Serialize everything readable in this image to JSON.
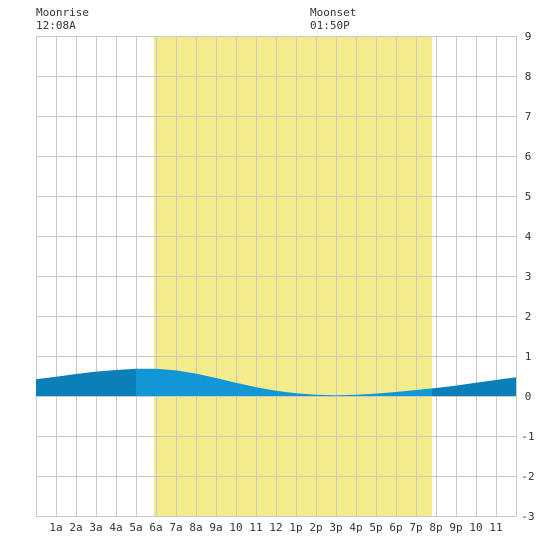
{
  "moon": {
    "rise_label": "Moonrise",
    "rise_time": "12:08A",
    "set_label": "Moonset",
    "set_time": "01:50P"
  },
  "colors": {
    "daylight": "#f4ec8a",
    "night_tide": "#0a7fb8",
    "day_tide": "#1396d6",
    "grid": "#c8c8c8",
    "axis_text": "#333333"
  },
  "chart_data": {
    "type": "area",
    "title": "",
    "xlabel": "",
    "ylabel": "",
    "xlim": [
      0,
      24
    ],
    "ylim": [
      -3,
      9
    ],
    "yticks": [
      "-3",
      "-2",
      "-1",
      "0",
      "1",
      "2",
      "3",
      "4",
      "5",
      "6",
      "7",
      "8",
      "9"
    ],
    "xticks": [
      {
        "x": 1,
        "label": "1a"
      },
      {
        "x": 2,
        "label": "2a"
      },
      {
        "x": 3,
        "label": "3a"
      },
      {
        "x": 4,
        "label": "4a"
      },
      {
        "x": 5,
        "label": "5a"
      },
      {
        "x": 6,
        "label": "6a"
      },
      {
        "x": 7,
        "label": "7a"
      },
      {
        "x": 8,
        "label": "8a"
      },
      {
        "x": 9,
        "label": "9a"
      },
      {
        "x": 10,
        "label": "10"
      },
      {
        "x": 11,
        "label": "11"
      },
      {
        "x": 12,
        "label": "12"
      },
      {
        "x": 13,
        "label": "1p"
      },
      {
        "x": 14,
        "label": "2p"
      },
      {
        "x": 15,
        "label": "3p"
      },
      {
        "x": 16,
        "label": "4p"
      },
      {
        "x": 17,
        "label": "5p"
      },
      {
        "x": 18,
        "label": "6p"
      },
      {
        "x": 19,
        "label": "7p"
      },
      {
        "x": 20,
        "label": "8p"
      },
      {
        "x": 21,
        "label": "9p"
      },
      {
        "x": 22,
        "label": "10"
      },
      {
        "x": 23,
        "label": "11"
      }
    ],
    "daylight": {
      "start": 5.9,
      "end": 19.8
    },
    "moonrise_hour": 0.13,
    "moonset_hour": 13.83,
    "grid": true,
    "series": [
      {
        "x": [
          0,
          1,
          2,
          3,
          4,
          5,
          6,
          7,
          8,
          9,
          10,
          11,
          12,
          13,
          14,
          15,
          16,
          17,
          18,
          19,
          20,
          21,
          22,
          23,
          24
        ],
        "values": [
          0.42,
          0.48,
          0.55,
          0.61,
          0.65,
          0.68,
          0.68,
          0.64,
          0.56,
          0.45,
          0.33,
          0.22,
          0.13,
          0.07,
          0.03,
          0.02,
          0.03,
          0.06,
          0.1,
          0.15,
          0.2,
          0.26,
          0.33,
          0.4,
          0.47
        ]
      }
    ]
  }
}
